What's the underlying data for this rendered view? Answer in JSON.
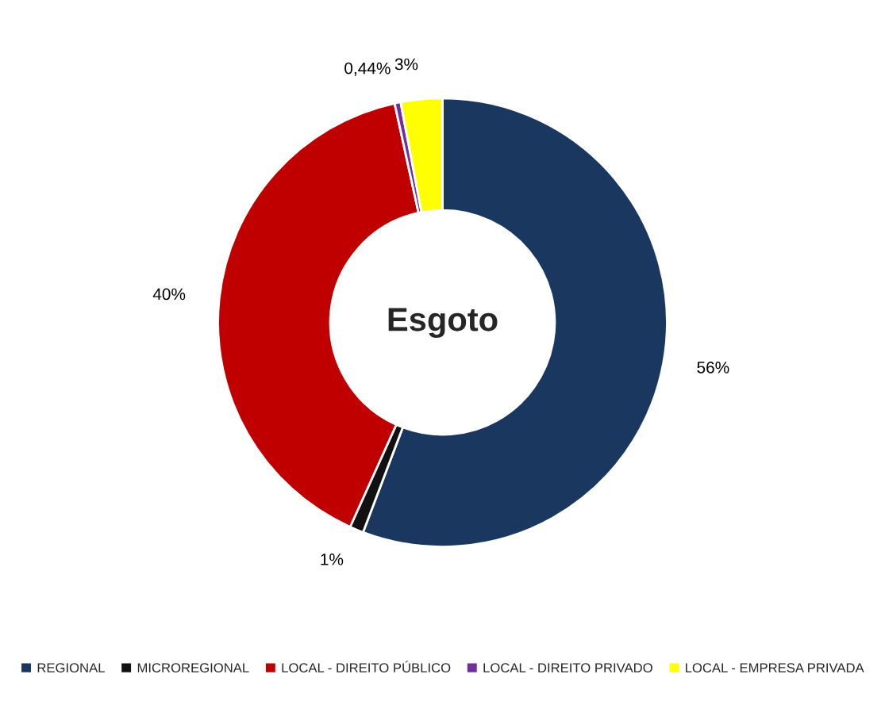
{
  "chart_data": {
    "type": "donut",
    "title": "Esgoto",
    "categories": [
      "REGIONAL",
      "MICROREGIONAL",
      "LOCAL - DIREITO PÚBLICO",
      "LOCAL - DIREITO PRIVADO",
      "LOCAL - EMPRESA PRIVADA"
    ],
    "values": [
      56,
      1,
      40,
      0.44,
      3
    ],
    "value_labels": [
      "56%",
      "1%",
      "40%",
      "0,44%",
      "3%"
    ],
    "colors": [
      "#1a3760",
      "#111111",
      "#c00000",
      "#7030a0",
      "#ffff00"
    ],
    "legend": "bottom"
  }
}
